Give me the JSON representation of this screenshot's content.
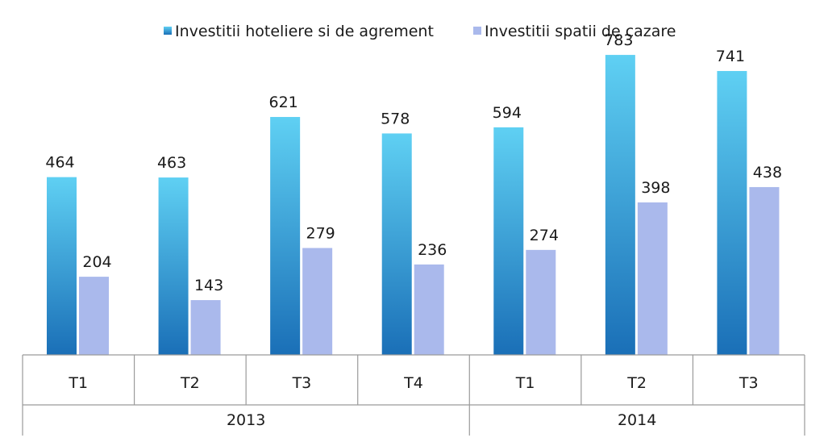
{
  "chart_data": {
    "type": "bar",
    "title": "",
    "xlabel": "",
    "ylabel": "",
    "ylim": [
      0,
      800
    ],
    "grid": false,
    "legend_position": "top-center",
    "categories": [
      "T1",
      "T2",
      "T3",
      "T4",
      "T1",
      "T2",
      "T3"
    ],
    "groups": [
      {
        "label": "2013",
        "categories": [
          "T1",
          "T2",
          "T3",
          "T4"
        ]
      },
      {
        "label": "2014",
        "categories": [
          "T1",
          "T2",
          "T3"
        ]
      }
    ],
    "series": [
      {
        "name": "Investitii hoteliere si de agrement",
        "color_top": "#5fd0f3",
        "color_bottom": "#1a6fb7",
        "values": [
          464,
          463,
          621,
          578,
          594,
          783,
          741
        ]
      },
      {
        "name": "Investitii spatii de cazare",
        "color": "#aab9ec",
        "values": [
          204,
          143,
          279,
          236,
          274,
          398,
          438
        ]
      }
    ]
  }
}
